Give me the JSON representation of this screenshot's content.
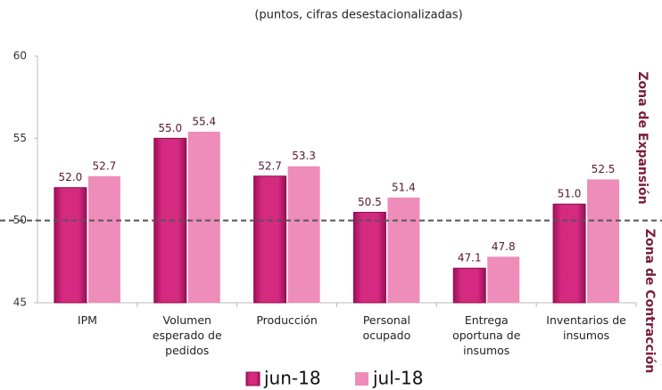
{
  "chart_data": {
    "type": "bar",
    "subtitle": "(puntos, cifras desestacionalizadas)",
    "categories": [
      "IPM",
      "Volumen esperado de pedidos",
      "Producción",
      "Personal ocupado",
      "Entrega oportuna de insumos",
      "Inventarios de insumos"
    ],
    "series": [
      {
        "name": "jun-18",
        "color": "#d42a80",
        "values": [
          52.0,
          55.0,
          52.7,
          50.5,
          47.1,
          51.0
        ],
        "value_labels": [
          "52.0",
          "55.0",
          "52.7",
          "50.5",
          "47.1",
          "51.0"
        ]
      },
      {
        "name": "jul-18",
        "color": "#ee8cba",
        "values": [
          52.7,
          55.4,
          53.3,
          51.4,
          47.8,
          52.5
        ],
        "value_labels": [
          "52.7",
          "55.4",
          "53.3",
          "51.4",
          "47.8",
          "52.5"
        ]
      }
    ],
    "ylim": [
      45,
      60
    ],
    "yticks": [
      45,
      50,
      55,
      60
    ],
    "reference_line": 50,
    "zone_labels": [
      "Zona de Expansión",
      "Zona de Contracción"
    ]
  }
}
